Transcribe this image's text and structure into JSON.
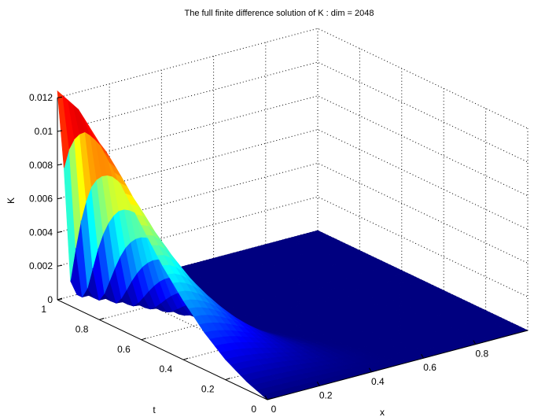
{
  "chart_data": {
    "type": "surface",
    "title": "The full finite difference solution of K : dim = 2048",
    "xlabel": "x",
    "ylabel": "t",
    "zlabel": "K",
    "xlim": [
      0,
      1
    ],
    "ylim": [
      0,
      1
    ],
    "zlim": [
      0,
      0.012
    ],
    "x_ticks": [
      "0",
      "0.2",
      "0.4",
      "0.6",
      "0.8"
    ],
    "y_ticks": [
      "0",
      "0.2",
      "0.4",
      "0.6",
      "0.8",
      "1"
    ],
    "z_ticks": [
      "0",
      "0.002",
      "0.004",
      "0.006",
      "0.008",
      "0.01",
      "0.012"
    ],
    "grid": true,
    "colormap": "jet",
    "peak": {
      "x": 0,
      "t": 1,
      "K": 0.0124
    },
    "profile": [
      {
        "t": 0.0,
        "K": 0.0
      },
      {
        "t": 0.1,
        "K": 0.0005
      },
      {
        "t": 0.2,
        "K": 0.0012
      },
      {
        "t": 0.3,
        "K": 0.0022
      },
      {
        "t": 0.4,
        "K": 0.0035
      },
      {
        "t": 0.5,
        "K": 0.005
      },
      {
        "t": 0.6,
        "K": 0.0068
      },
      {
        "t": 0.7,
        "K": 0.0087
      },
      {
        "t": 0.8,
        "K": 0.0105
      },
      {
        "t": 0.9,
        "K": 0.0119
      },
      {
        "t": 1.0,
        "K": 0.0124
      }
    ],
    "decay_x": 0.55
  }
}
